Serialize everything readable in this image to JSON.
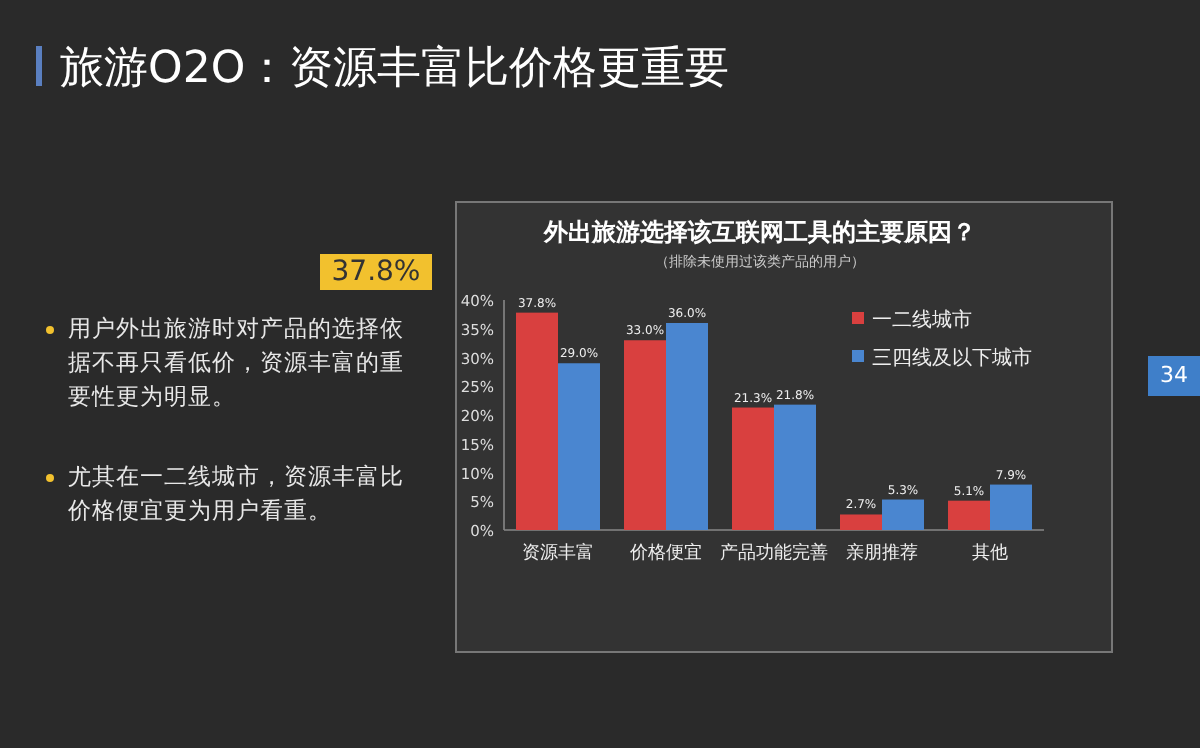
{
  "chart_data": {
    "type": "bar",
    "title": "旅游O2O：资源丰富比价格更重要",
    "subtitle": "外出旅游选择该互联网工具的主要原因？",
    "annotations": [
      "（排除未使用过该类产品的用户）",
      "37.8%",
      "用户外出旅游时对产品的选择依据不再只看低价，资源丰富的重要性更为明显。",
      "尤其在一二线城市，资源丰富比价格便宜更为用户看重。",
      "34"
    ],
    "categories": [
      "资源丰富",
      "价格便宜",
      "产品功能完善",
      "亲朋推荐",
      "其他"
    ],
    "series": [
      {
        "name": "一二线城市",
        "color": "#d9403f",
        "values": [
          37.8,
          33.0,
          21.3,
          2.7,
          5.1
        ],
        "value_labels": [
          "37.8%",
          "33.0%",
          "21.3%",
          "2.7%",
          "5.1%"
        ]
      },
      {
        "name": "三四线及以下城市",
        "color": "#4a86d0",
        "values": [
          29.0,
          36.0,
          21.8,
          5.3,
          7.9
        ],
        "value_labels": [
          "29.0%",
          "36.0%",
          "21.8%",
          "5.3%",
          "7.9%"
        ]
      }
    ],
    "ylim": [
      0,
      40
    ],
    "yticks": [
      {
        "value": 0,
        "label": "0%"
      },
      {
        "value": 5,
        "label": "5%"
      },
      {
        "value": 10,
        "label": "10%"
      },
      {
        "value": 15,
        "label": "15%"
      },
      {
        "value": 20,
        "label": "20%"
      },
      {
        "value": 25,
        "label": "25%"
      },
      {
        "value": 30,
        "label": "30%"
      },
      {
        "value": 35,
        "label": "35%"
      },
      {
        "value": 40,
        "label": "40%"
      }
    ],
    "legend": "top right"
  }
}
